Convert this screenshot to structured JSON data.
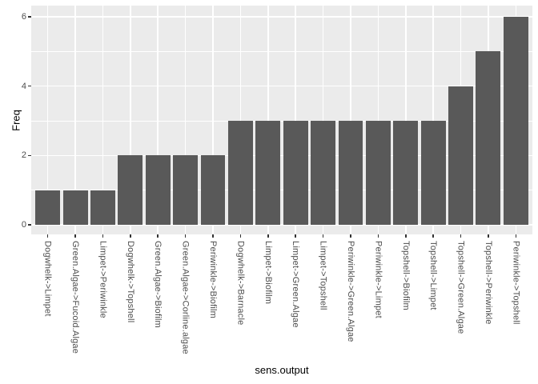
{
  "chart_data": {
    "type": "bar",
    "title": "",
    "xlabel": "sens.output",
    "ylabel": "Freq",
    "categories": [
      "Dogwhelk->Limpet",
      "Green.Algae->Fucoid.Algae",
      "Limpet->Periwinkle",
      "Dogwhelk->Topshell",
      "Green.Algae->Biofilm",
      "Green.Algae->Corline.algae",
      "Periwinkle->Biofilm",
      "Dogwhelk->Barnacle",
      "Limpet->Biofilm",
      "Limpet->Green.Algae",
      "Limpet->Topshell",
      "Periwinkle->Green.Algae",
      "Periwinkle->Limpet",
      "Topshell->Biofilm",
      "Topshell->Limpet",
      "Topshell->Green.Algae",
      "Topshell->Periwinkle",
      "Periwinkle->Topshell"
    ],
    "values": [
      1,
      1,
      1,
      2,
      2,
      2,
      2,
      3,
      3,
      3,
      3,
      3,
      3,
      3,
      3,
      4,
      5,
      6
    ],
    "ylim": [
      0,
      6
    ],
    "yticks": [
      0,
      2,
      4,
      6
    ],
    "yticks_minor": [
      1,
      3,
      5
    ],
    "legend_position": "none",
    "grid": "horizontal major+minor, vertical major at category centers",
    "colors": {
      "bar_fill": "#595959",
      "panel_bg": "#EBEBEB",
      "gridline": "#FFFFFF",
      "tick_label": "#4D4D4D",
      "axis_title": "#000000",
      "tick_mark": "#333333",
      "page_bg": "#FFFFFF"
    }
  }
}
